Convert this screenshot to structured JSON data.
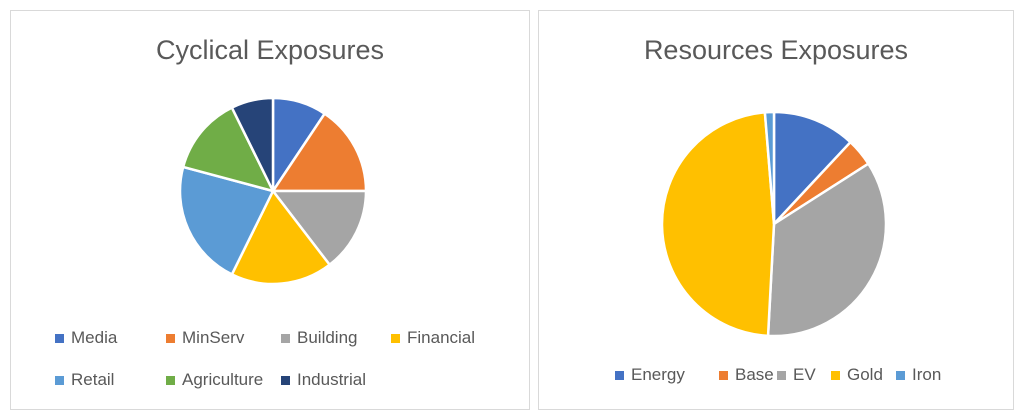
{
  "chart_data": [
    {
      "type": "pie",
      "title": "Cyclical Exposures",
      "series": [
        {
          "name": "Media",
          "value": 9,
          "color": "#4472C4"
        },
        {
          "name": "MinServ",
          "value": 15,
          "color": "#ED7D31"
        },
        {
          "name": "Building",
          "value": 14,
          "color": "#A5A5A5"
        },
        {
          "name": "Financial",
          "value": 17,
          "color": "#FFC000"
        },
        {
          "name": "Retail",
          "value": 21,
          "color": "#5B9BD5"
        },
        {
          "name": "Agriculture",
          "value": 13,
          "color": "#70AD47"
        },
        {
          "name": "Industrial",
          "value": 7,
          "color": "#264478"
        }
      ],
      "legend_position": "bottom"
    },
    {
      "type": "pie",
      "title": "Resources Exposures",
      "series": [
        {
          "name": "Energy",
          "value": 12,
          "color": "#4472C4"
        },
        {
          "name": "Base",
          "value": 4,
          "color": "#ED7D31"
        },
        {
          "name": "EV",
          "value": 35,
          "color": "#A5A5A5"
        },
        {
          "name": "Gold",
          "value": 48,
          "color": "#FFC000"
        },
        {
          "name": "Iron",
          "value": 1.3,
          "color": "#5B9BD5"
        }
      ],
      "legend_position": "bottom"
    }
  ]
}
